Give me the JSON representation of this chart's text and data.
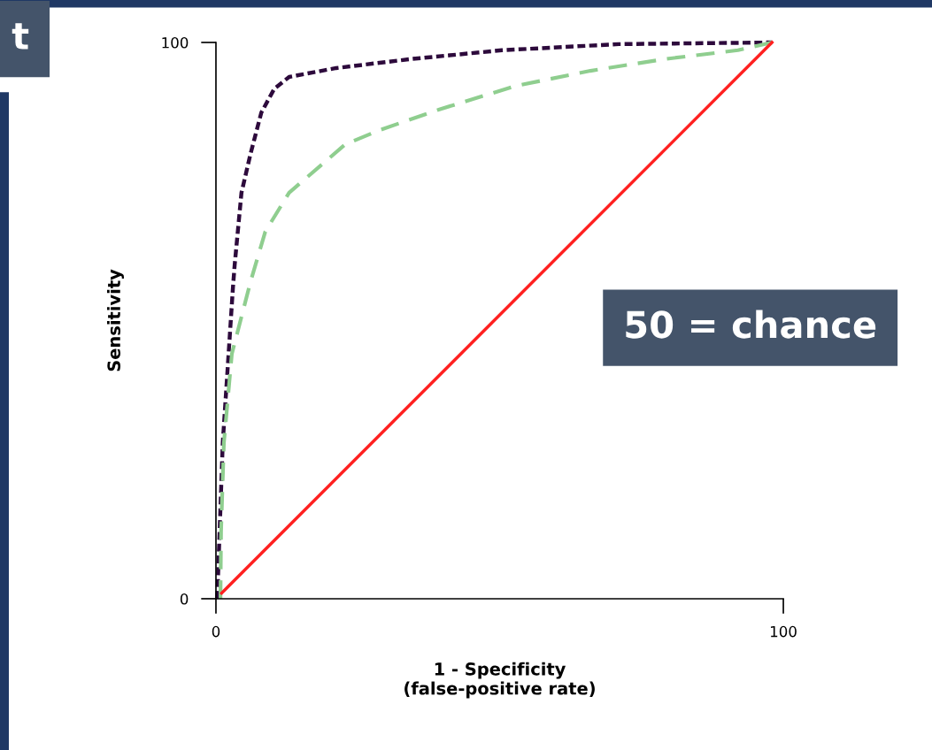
{
  "chart_data": {
    "type": "line",
    "xlabel": "1 - Specificity\n(false-positive rate)",
    "ylabel": "Sensitivity",
    "xlim": [
      0,
      100
    ],
    "ylim": [
      0,
      100
    ],
    "xticks": [
      0,
      100
    ],
    "yticks": [
      0,
      100
    ],
    "grid": false,
    "legend": false,
    "marker": "none",
    "series": [
      {
        "color": "#2d0a3c",
        "line_style": "dotted",
        "x": [
          0.2,
          0.3,
          1.2,
          3,
          3.3,
          4.5,
          6.1,
          8,
          10.3,
          12.9,
          21.2,
          34.2,
          50.4,
          71,
          98
        ],
        "values": [
          0,
          2,
          28,
          56,
          60,
          73,
          80,
          87.4,
          91.7,
          93.8,
          95.4,
          97,
          98.6,
          99.7,
          100
        ]
      },
      {
        "color": "#8fce8f",
        "line_style": "dashed",
        "x": [
          0.8,
          0.9,
          1.4,
          2.8,
          6.1,
          8.7,
          12.9,
          18.6,
          22.8,
          29,
          39.5,
          52.9,
          66,
          79,
          92,
          98
        ],
        "values": [
          0,
          12,
          28,
          44,
          57,
          66,
          73,
          78,
          81.7,
          84.3,
          88,
          92.2,
          94.9,
          97,
          98.6,
          100
        ]
      },
      {
        "color": "#ff2020",
        "line_style": "solid",
        "x": [
          1,
          98
        ],
        "values": [
          1,
          100
        ]
      }
    ],
    "annotations": [
      "t",
      "50 = chance"
    ]
  }
}
